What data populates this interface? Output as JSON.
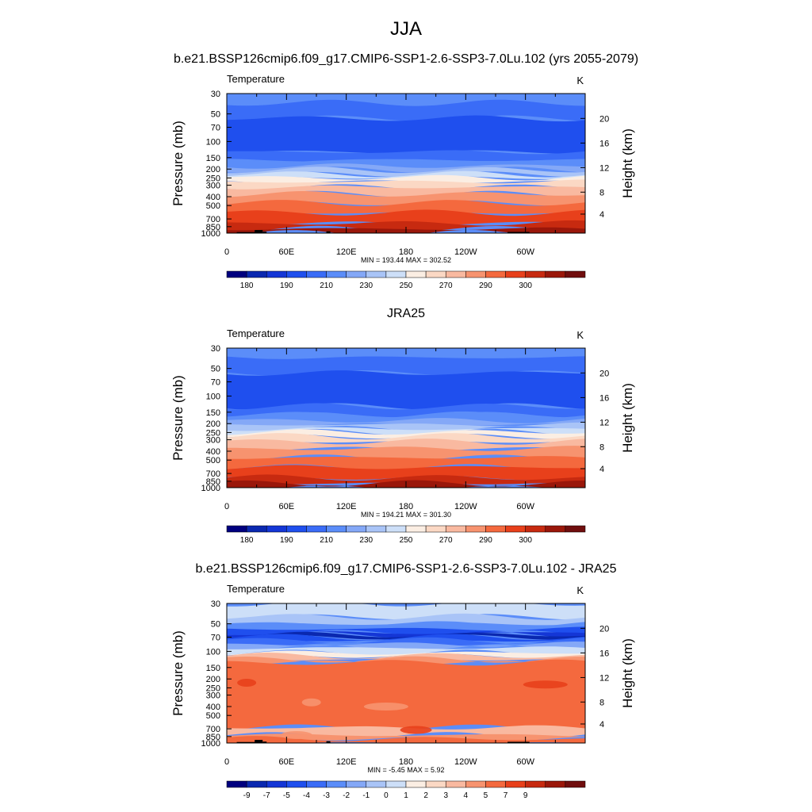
{
  "figure": {
    "title": "JJA"
  },
  "colors": {
    "palette": [
      "#00007f",
      "#0a28b0",
      "#1436d6",
      "#1f4fee",
      "#3a6cf7",
      "#5b8df9",
      "#84a8f7",
      "#a9c4f7",
      "#cddff8",
      "#fbeee3",
      "#fbd8c4",
      "#f9b9a0",
      "#f7936f",
      "#f4693e",
      "#e8401b",
      "#c72a10",
      "#9a170a",
      "#700e0e"
    ]
  },
  "chart_data": [
    {
      "type": "heatmap",
      "title": "b.e21.BSSP126cmip6.f09_g17.CMIP6-SSP1-2.6-SSP3-7.0Lu.102 (yrs 2055-2079)",
      "variable_label": "Temperature",
      "units_label": "K",
      "ylabel": "Pressure (mb)",
      "ylabel_right": "Height (km)",
      "xticks": [
        "0",
        "60E",
        "120E",
        "180",
        "120W",
        "60W"
      ],
      "yticks": [
        "30",
        "50",
        "70",
        "100",
        "150",
        "200",
        "250",
        "300",
        "400",
        "500",
        "700",
        "850",
        "1000"
      ],
      "yticks_right": [
        "20",
        "16",
        "12",
        "8",
        "4"
      ],
      "x_range": [
        0,
        360
      ],
      "y_range": [
        1000,
        30
      ],
      "y_scale": "log",
      "stats": "MIN = 193.44  MAX = 302.52",
      "levels_labeled": [
        "180",
        "190",
        "210",
        "230",
        "250",
        "270",
        "290",
        "300"
      ],
      "has_topography_mask": true
    },
    {
      "type": "heatmap",
      "title": "JRA25",
      "variable_label": "Temperature",
      "units_label": "K",
      "ylabel": "Pressure (mb)",
      "ylabel_right": "Height (km)",
      "xticks": [
        "0",
        "60E",
        "120E",
        "180",
        "120W",
        "60W"
      ],
      "yticks": [
        "30",
        "50",
        "70",
        "100",
        "150",
        "200",
        "250",
        "300",
        "400",
        "500",
        "700",
        "850",
        "1000"
      ],
      "yticks_right": [
        "20",
        "16",
        "12",
        "8",
        "4"
      ],
      "x_range": [
        0,
        360
      ],
      "y_range": [
        1000,
        30
      ],
      "y_scale": "log",
      "stats": "MIN = 194.21  MAX = 301.30",
      "levels_labeled": [
        "180",
        "190",
        "210",
        "230",
        "250",
        "270",
        "290",
        "300"
      ],
      "has_topography_mask": false
    },
    {
      "type": "heatmap",
      "title": "b.e21.BSSP126cmip6.f09_g17.CMIP6-SSP1-2.6-SSP3-7.0Lu.102 - JRA25",
      "variable_label": "Temperature",
      "units_label": "K",
      "ylabel": "Pressure (mb)",
      "ylabel_right": "Height (km)",
      "xticks": [
        "0",
        "60E",
        "120E",
        "180",
        "120W",
        "60W"
      ],
      "yticks": [
        "30",
        "50",
        "70",
        "100",
        "150",
        "200",
        "250",
        "300",
        "400",
        "500",
        "700",
        "850",
        "1000"
      ],
      "yticks_right": [
        "20",
        "16",
        "12",
        "8",
        "4"
      ],
      "x_range": [
        0,
        360
      ],
      "y_range": [
        1000,
        30
      ],
      "y_scale": "log",
      "stats": "MIN =  -5.45  MAX =   5.92",
      "levels_labeled": [
        "-9",
        "-7",
        "-5",
        "-4",
        "-3",
        "-2",
        "-1",
        "0",
        "1",
        "2",
        "3",
        "4",
        "5",
        "7",
        "9"
      ],
      "has_topography_mask": true
    }
  ]
}
